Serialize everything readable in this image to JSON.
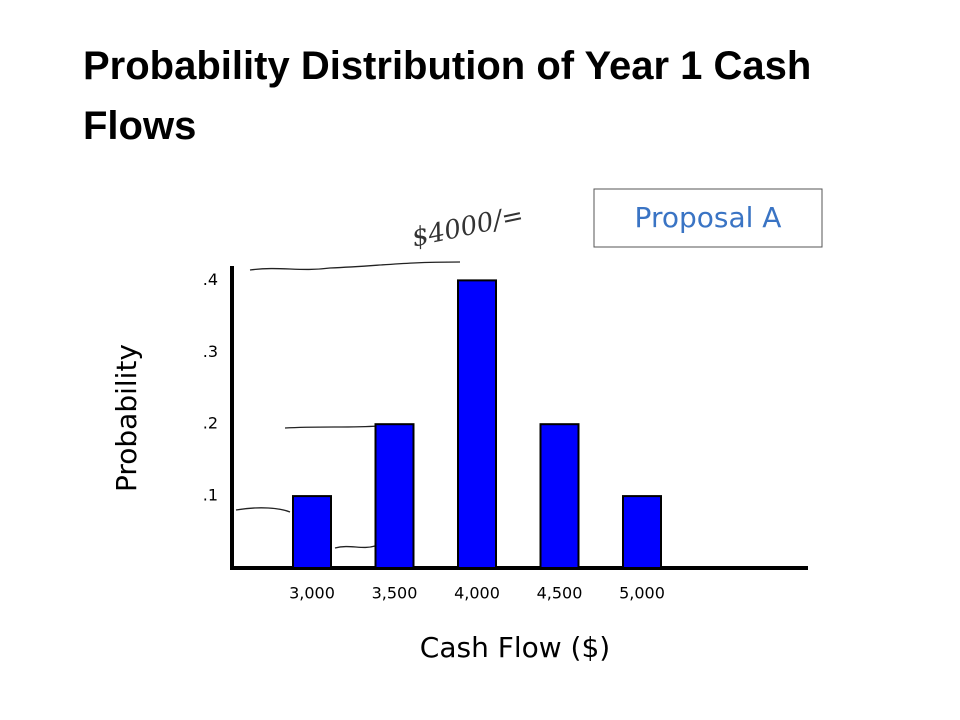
{
  "chart_data": {
    "type": "bar",
    "title": "Probability Distribution of Year 1 Cash Flows",
    "legend_box": "Proposal A",
    "annotation": "$4000/=",
    "x_label": "Cash Flow ($)",
    "y_label": "Probability",
    "categories": [
      "3,000",
      "3,500",
      "4,000",
      "4,500",
      "5,000"
    ],
    "values": [
      0.1,
      0.2,
      0.4,
      0.2,
      0.1
    ],
    "color": "#0000ff",
    "ylim": [
      0,
      0.42
    ],
    "yticks": [
      {
        "value": 0.1,
        "label": ".1"
      },
      {
        "value": 0.2,
        "label": ".2"
      },
      {
        "value": 0.3,
        "label": ".3"
      },
      {
        "value": 0.4,
        "label": ".4"
      }
    ],
    "grid": false
  }
}
